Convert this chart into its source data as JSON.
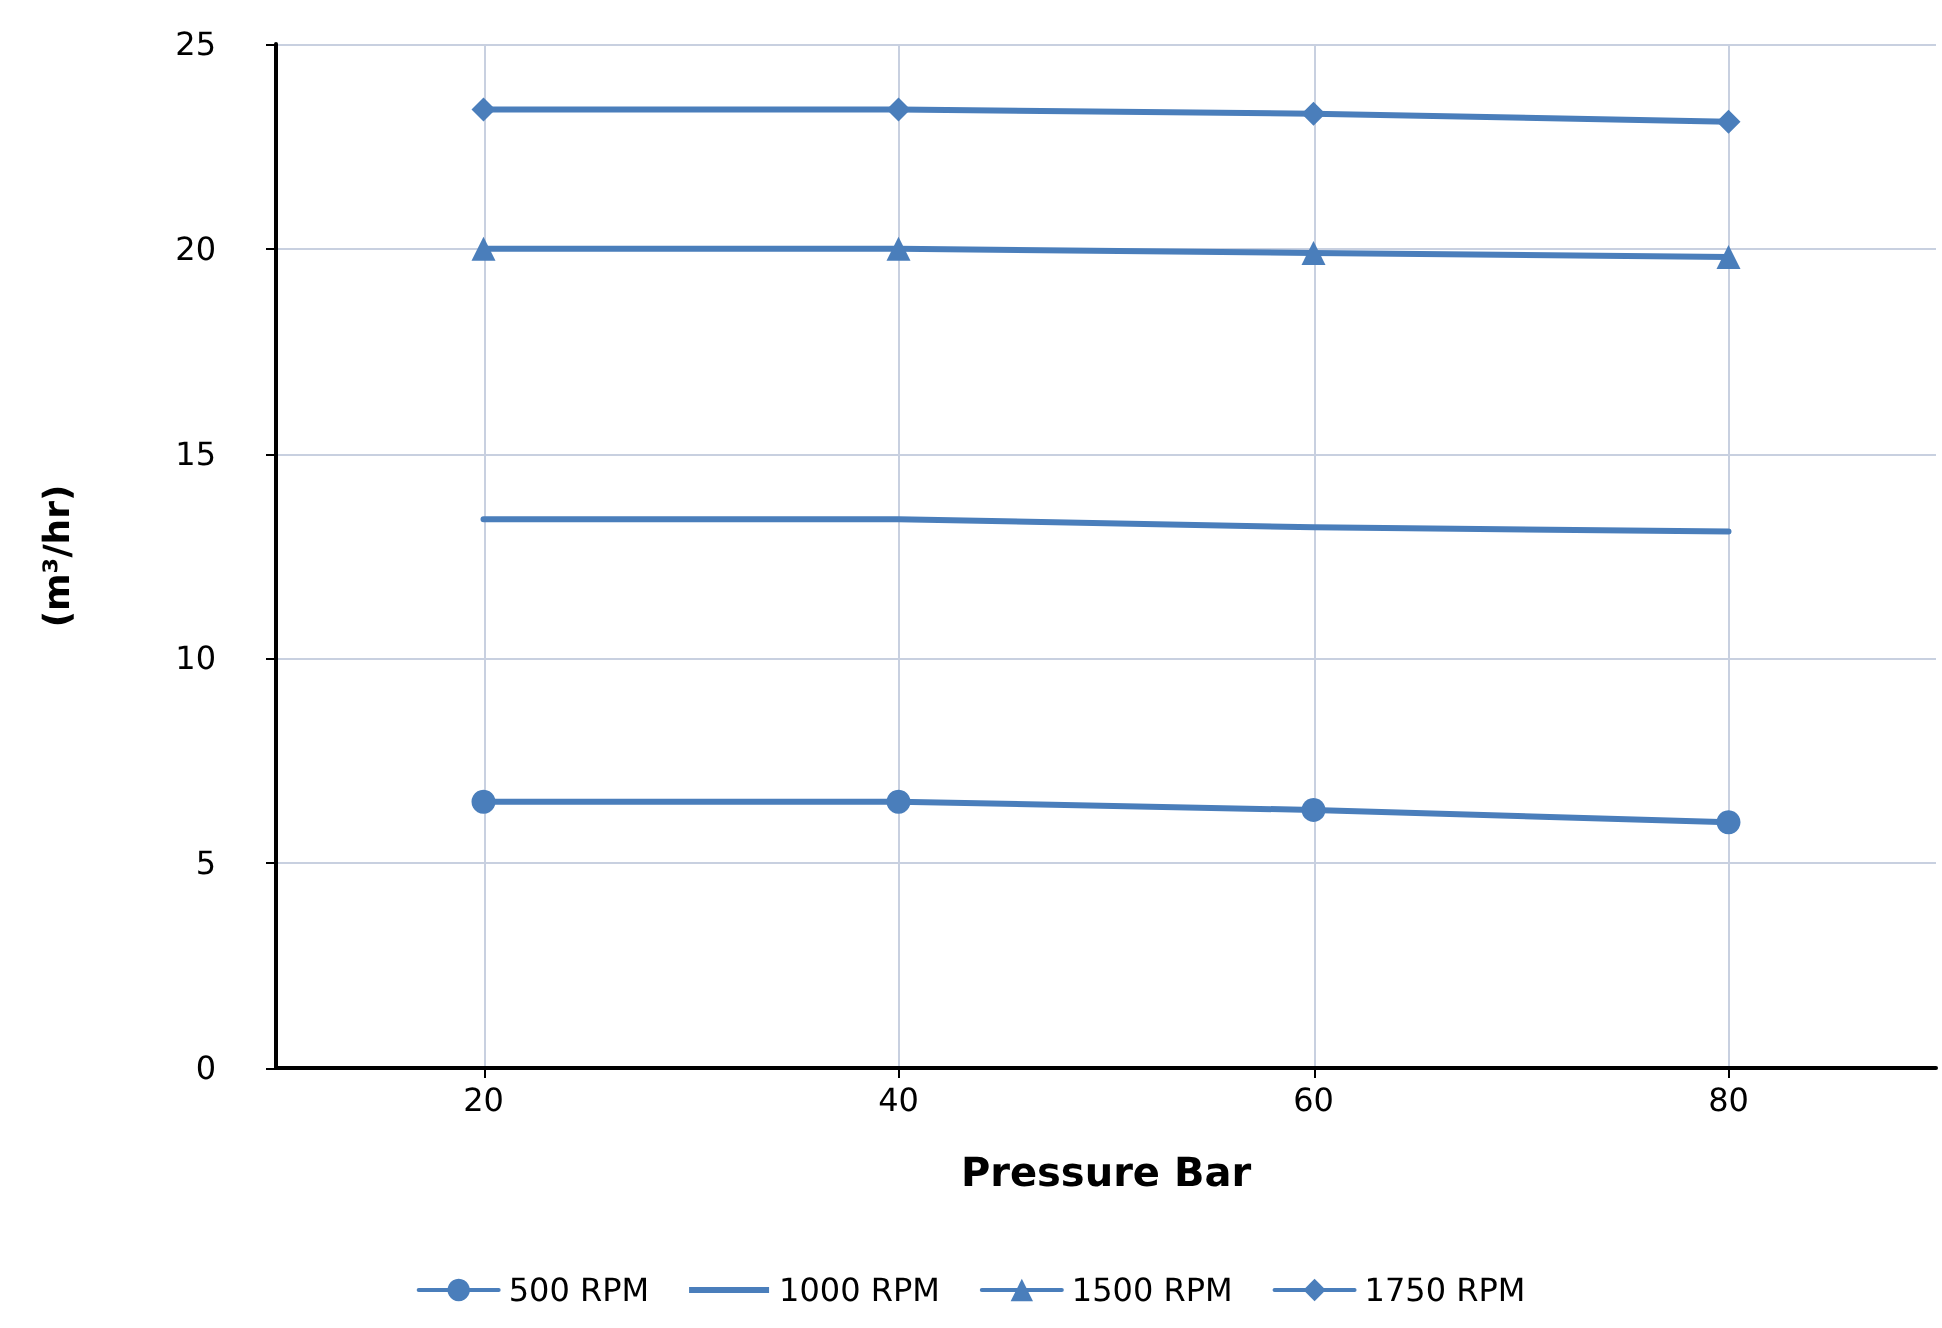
{
  "chart_data": {
    "type": "line",
    "xlabel": "Pressure Bar",
    "ylabel": "(m³/hr)",
    "x": [
      20,
      40,
      60,
      80
    ],
    "series": [
      {
        "name": "500 RPM",
        "color": "#4a7ebb",
        "marker": "circle",
        "values": [
          6.5,
          6.5,
          6.3,
          6.0
        ]
      },
      {
        "name": "1000 RPM",
        "color": "#4a7ebb",
        "marker": "none",
        "values": [
          13.4,
          13.4,
          13.2,
          13.1
        ]
      },
      {
        "name": "1500 RPM",
        "color": "#4a7ebb",
        "marker": "triangle",
        "values": [
          20.0,
          20.0,
          19.9,
          19.8
        ]
      },
      {
        "name": "1750 RPM",
        "color": "#4a7ebb",
        "marker": "diamond",
        "values": [
          23.4,
          23.4,
          23.3,
          23.1
        ]
      }
    ],
    "xlim": [
      10,
      90
    ],
    "xticks": [
      20,
      40,
      60,
      80
    ],
    "ylim": [
      0,
      25
    ],
    "yticks": [
      0,
      5,
      10,
      15,
      20,
      25
    ],
    "grid": true,
    "legend": "bottom"
  }
}
